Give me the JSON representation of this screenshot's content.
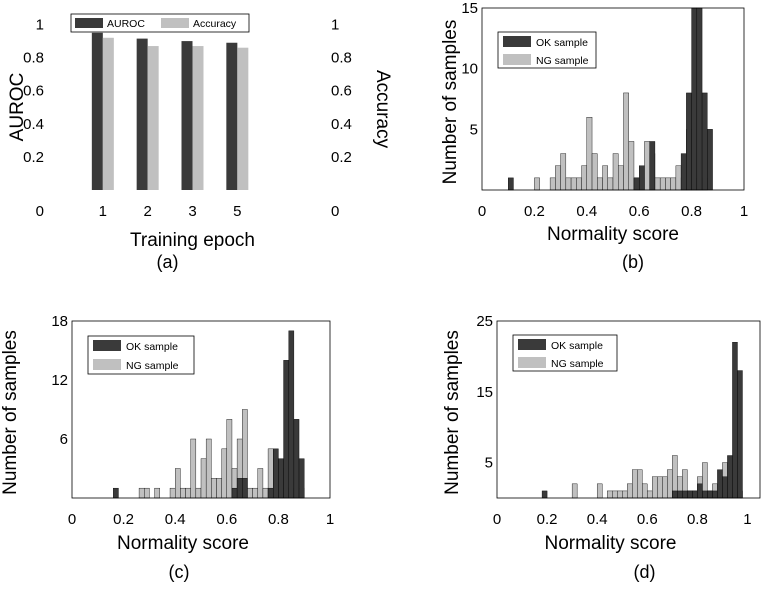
{
  "chart_data": [
    {
      "type": "bar",
      "panel_label": "(a)",
      "xlabel": "Training epoch",
      "ylabel": "AUROC",
      "ylabel_right": "Accuracy",
      "categories": [
        "1",
        "2",
        "3",
        "5"
      ],
      "series": [
        {
          "name": "AUROC",
          "values": [
            0.95,
            0.915,
            0.9,
            0.89
          ],
          "color": "#3a3a3a"
        },
        {
          "name": "Accuracy",
          "values": [
            0.92,
            0.87,
            0.87,
            0.86
          ],
          "color": "#c0c0c0"
        }
      ],
      "xlim": [
        0,
        6
      ],
      "ylim": [
        0,
        1.1
      ],
      "yticks": [
        0,
        0.2,
        0.4,
        0.6,
        0.8,
        1
      ],
      "ytick_labels": [
        "0",
        "0.2",
        "0.4",
        "0.6",
        "0.8",
        "1"
      ],
      "legend": "top-left, horizontal",
      "grid": false
    },
    {
      "type": "histogram",
      "panel_label": "(b)",
      "xlabel": "Normality score",
      "ylabel": "Number of samples",
      "xlim": [
        0,
        1
      ],
      "ylim": [
        0,
        15
      ],
      "xticks": [
        0,
        0.2,
        0.4,
        0.6,
        0.8,
        1
      ],
      "xtick_labels": [
        "0",
        "0.2",
        "0.4",
        "0.6",
        "0.8",
        "1"
      ],
      "yticks": [
        5,
        10,
        15
      ],
      "bin_width": 0.02,
      "legend": "top-left",
      "grid": false,
      "series": [
        {
          "name": "OK sample",
          "color": "#3a3a3a",
          "x": [
            0.1,
            0.58,
            0.6,
            0.64,
            0.76,
            0.78,
            0.8,
            0.82,
            0.84,
            0.86
          ],
          "values": [
            1,
            1,
            2,
            4,
            3,
            8,
            15,
            15,
            8,
            5
          ]
        },
        {
          "name": "NG sample",
          "color": "#c0c0c0",
          "x": [
            0.2,
            0.26,
            0.28,
            0.3,
            0.32,
            0.34,
            0.36,
            0.38,
            0.4,
            0.42,
            0.44,
            0.46,
            0.48,
            0.5,
            0.52,
            0.54,
            0.56,
            0.58,
            0.6,
            0.62,
            0.64,
            0.66,
            0.68,
            0.7,
            0.72,
            0.74,
            0.76,
            0.78,
            0.8,
            0.82,
            0.84
          ],
          "values": [
            1,
            1,
            2,
            3,
            1,
            1,
            1,
            2,
            6,
            3,
            1,
            2,
            1,
            3,
            2,
            8,
            4,
            1,
            1,
            4,
            3,
            1,
            1,
            1,
            1,
            2,
            1,
            5,
            1,
            1,
            1
          ]
        }
      ]
    },
    {
      "type": "histogram",
      "panel_label": "(c)",
      "xlabel": "Normality score",
      "ylabel": "Number of samples",
      "xlim": [
        0,
        1
      ],
      "ylim": [
        0,
        18
      ],
      "xticks": [
        0,
        0.2,
        0.4,
        0.6,
        0.8,
        1
      ],
      "xtick_labels": [
        "0",
        "0.2",
        "0.4",
        "0.6",
        "0.8",
        "1"
      ],
      "yticks": [
        6,
        12,
        18
      ],
      "bin_width": 0.02,
      "legend": "top-left",
      "grid": false,
      "series": [
        {
          "name": "OK sample",
          "color": "#3a3a3a",
          "x": [
            0.16,
            0.62,
            0.64,
            0.66,
            0.76,
            0.78,
            0.8,
            0.82,
            0.84,
            0.86,
            0.88
          ],
          "values": [
            1,
            1,
            2,
            2,
            1,
            5,
            4,
            14,
            17,
            8,
            4
          ]
        },
        {
          "name": "NG sample",
          "color": "#c0c0c0",
          "x": [
            0.26,
            0.28,
            0.32,
            0.38,
            0.4,
            0.42,
            0.44,
            0.46,
            0.48,
            0.5,
            0.52,
            0.54,
            0.56,
            0.58,
            0.6,
            0.62,
            0.64,
            0.66,
            0.68,
            0.7,
            0.72,
            0.74,
            0.76,
            0.78,
            0.8,
            0.82,
            0.84,
            0.86,
            0.88
          ],
          "values": [
            1,
            1,
            1,
            1,
            3,
            1,
            1,
            6,
            1,
            4,
            6,
            2,
            2,
            5,
            8,
            3,
            6,
            9,
            1,
            1,
            3,
            1,
            5,
            4,
            3,
            1,
            1,
            1,
            1
          ]
        }
      ]
    },
    {
      "type": "histogram",
      "panel_label": "(d)",
      "xlabel": "Normality score",
      "ylabel": "Number of samples",
      "xlim": [
        0,
        1.05
      ],
      "ylim": [
        0,
        25
      ],
      "xticks": [
        0,
        0.2,
        0.4,
        0.6,
        0.8,
        1
      ],
      "xtick_labels": [
        "0",
        "0.2",
        "0.4",
        "0.6",
        "0.8",
        "1"
      ],
      "yticks": [
        5,
        15,
        25
      ],
      "bin_width": 0.02,
      "legend": "top-left",
      "grid": false,
      "series": [
        {
          "name": "OK sample",
          "color": "#3a3a3a",
          "x": [
            0.18,
            0.7,
            0.72,
            0.74,
            0.76,
            0.78,
            0.8,
            0.82,
            0.84,
            0.86,
            0.88,
            0.9,
            0.92,
            0.94,
            0.96
          ],
          "values": [
            1,
            1,
            1,
            1,
            1,
            1,
            2,
            1,
            1,
            1,
            4,
            3,
            6,
            22,
            18
          ]
        },
        {
          "name": "NG sample",
          "color": "#c0c0c0",
          "x": [
            0.3,
            0.4,
            0.44,
            0.46,
            0.48,
            0.5,
            0.52,
            0.54,
            0.56,
            0.58,
            0.6,
            0.62,
            0.64,
            0.66,
            0.68,
            0.7,
            0.72,
            0.74,
            0.76,
            0.78,
            0.8,
            0.82,
            0.84,
            0.86,
            0.88,
            0.9,
            0.92,
            0.94,
            0.96
          ],
          "values": [
            2,
            2,
            1,
            1,
            1,
            1,
            2,
            4,
            4,
            2,
            1,
            3,
            3,
            3,
            4,
            6,
            3,
            4,
            1,
            1,
            3,
            5,
            1,
            2,
            1,
            5,
            1,
            1,
            1
          ]
        }
      ]
    }
  ]
}
